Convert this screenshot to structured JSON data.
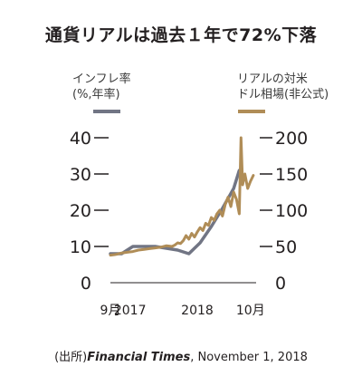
{
  "title": "通貨リアルは過去１年で72%下落",
  "legend": {
    "left": {
      "line1": "インフレ率",
      "line2": "(%,年率)",
      "color": "#717584"
    },
    "right": {
      "line1": "リアルの対米",
      "line2": "ドル相場(非公式)",
      "color": "#b08d57"
    }
  },
  "source": {
    "prefix": "(出所)",
    "publication": "Financial Times",
    "suffix": ", November 1, 2018"
  },
  "chart_data": {
    "type": "line",
    "x_ticks": [
      "9月",
      "2017",
      "2018",
      "10月"
    ],
    "x_tick_pos": [
      0,
      3.5,
      15.5,
      25
    ],
    "xlim": [
      0,
      26
    ],
    "y_left": {
      "ticks": [
        0,
        10,
        20,
        30,
        40
      ],
      "ylim": [
        0,
        40
      ]
    },
    "y_right": {
      "ticks": [
        0,
        50,
        100,
        150,
        200
      ],
      "ylim": [
        0,
        200
      ]
    },
    "series": [
      {
        "name": "インフレ率",
        "axis": "left",
        "color": "#717584",
        "x": [
          0,
          2,
          4,
          6,
          8,
          10,
          12,
          14,
          16,
          18,
          20,
          22,
          23
        ],
        "y": [
          8,
          8,
          10,
          10,
          10,
          9.5,
          9,
          8,
          11,
          15.5,
          20.5,
          26,
          31
        ]
      },
      {
        "name": "リアルの対米ドル相場(非公式)",
        "axis": "right",
        "color": "#b08d57",
        "x": [
          0,
          1,
          2,
          3,
          4,
          5,
          6,
          7,
          8,
          9,
          10,
          11,
          11.5,
          12,
          12.5,
          13,
          13.5,
          14,
          14.5,
          15,
          15.5,
          16,
          16.5,
          17,
          17.5,
          18,
          18.5,
          19,
          19.5,
          20,
          20.5,
          21,
          21.5,
          22,
          22.5,
          23,
          23.3,
          23.6,
          24,
          24.5,
          25,
          25.5
        ],
        "y": [
          38,
          39,
          41,
          42,
          43,
          45,
          46,
          47,
          48,
          49,
          51,
          50,
          52,
          55,
          54,
          58,
          65,
          60,
          68,
          63,
          70,
          76,
          72,
          82,
          79,
          90,
          86,
          95,
          100,
          92,
          108,
          118,
          105,
          125,
          115,
          95,
          200,
          135,
          150,
          130,
          140,
          148
        ]
      }
    ]
  }
}
